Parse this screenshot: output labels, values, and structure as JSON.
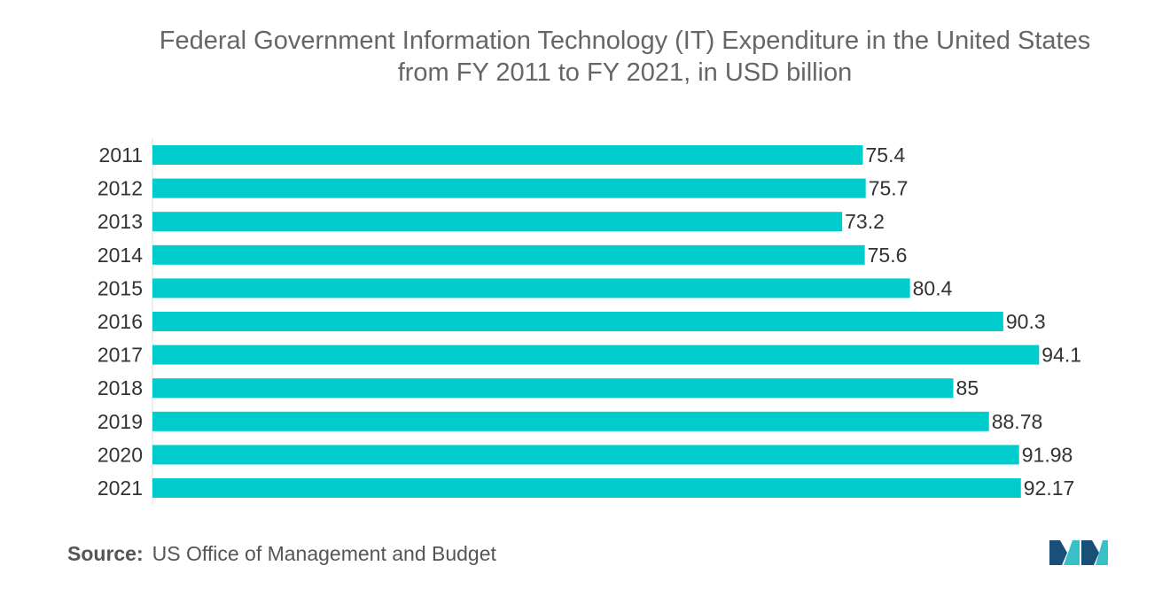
{
  "chart_data": {
    "type": "bar",
    "orientation": "horizontal",
    "title_lines": [
      "Federal Government Information Technology (IT) Expenditure in the United States",
      "from FY 2011 to FY 2021, in USD billion"
    ],
    "categories": [
      "2011",
      "2012",
      "2013",
      "2014",
      "2015",
      "2016",
      "2017",
      "2018",
      "2019",
      "2020",
      "2021"
    ],
    "values": [
      75.4,
      75.7,
      73.2,
      75.6,
      80.4,
      90.3,
      94.1,
      85,
      88.78,
      91.98,
      92.17
    ],
    "value_labels": [
      "75.4",
      "75.7",
      "73.2",
      "75.6",
      "80.4",
      "90.3",
      "94.1",
      "85",
      "88.78",
      "91.98",
      "92.17"
    ],
    "xlim": [
      0,
      100
    ],
    "grid": false,
    "bar_color": "#00cccc"
  },
  "footer": {
    "source_label": "Source:",
    "source_text": "US Office of Management and Budget"
  },
  "colors": {
    "logo_dark": "#1a4f7a",
    "logo_light": "#37c0c8"
  }
}
